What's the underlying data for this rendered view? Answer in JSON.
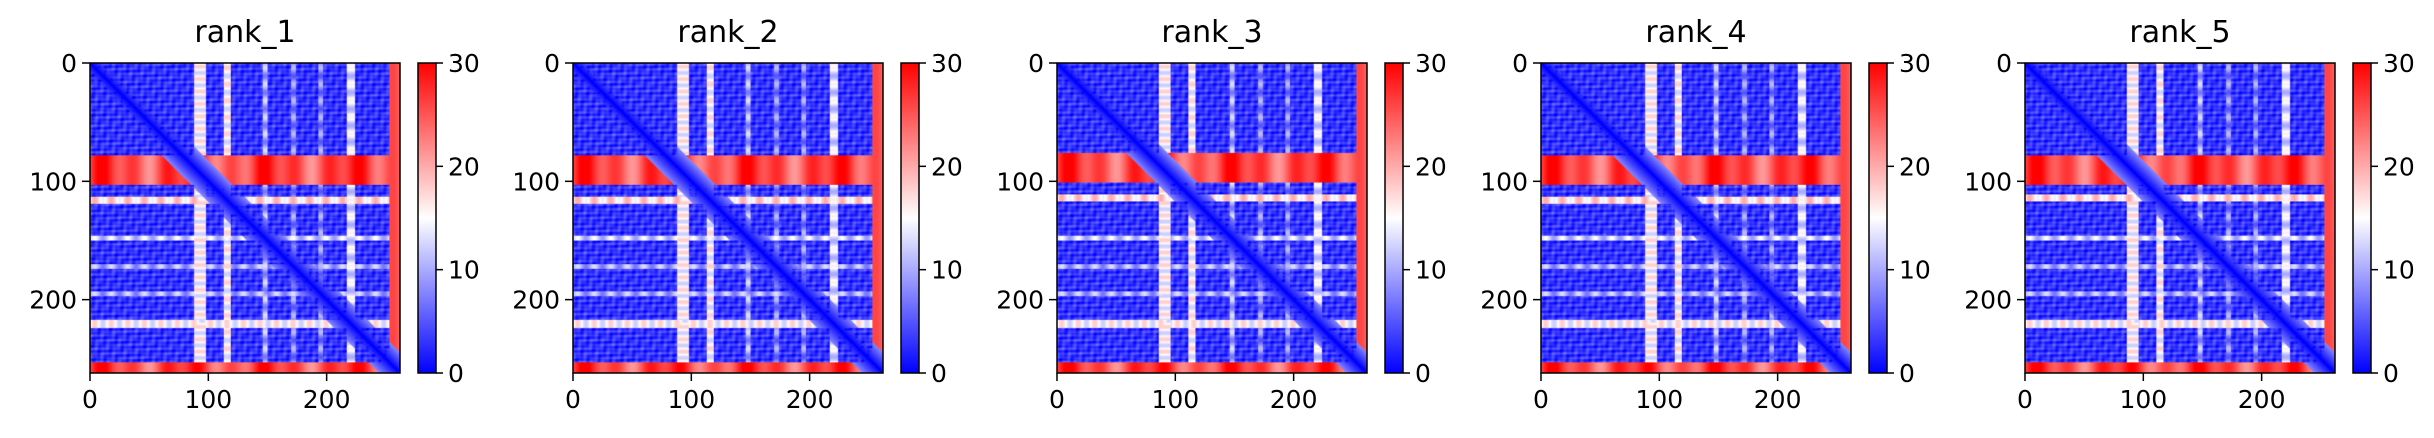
{
  "figure": {
    "colormap": "bwr",
    "colors": {
      "low": "#0000ff",
      "mid": "#ffffff",
      "high": "#ff0000"
    }
  },
  "chart_data": [
    {
      "type": "heatmap",
      "title": "rank_1",
      "n": 262,
      "x_ticks": [
        0,
        100,
        200
      ],
      "y_ticks": [
        0,
        100,
        200
      ],
      "colorbar": {
        "range": [
          0,
          30
        ],
        "ticks": [
          0,
          10,
          20,
          30
        ]
      },
      "hot_rows": [
        [
          78,
          103
        ],
        [
          253,
          262
        ]
      ],
      "hot_cols": [
        [
          88,
          98
        ]
      ],
      "bands": [
        [
          113,
          119,
          19
        ],
        [
          146,
          150,
          14
        ],
        [
          170,
          174,
          12
        ],
        [
          193,
          197,
          12
        ],
        [
          217,
          224,
          17
        ]
      ]
    },
    {
      "type": "heatmap",
      "title": "rank_2",
      "n": 262,
      "x_ticks": [
        0,
        100,
        200
      ],
      "y_ticks": [
        0,
        100,
        200
      ],
      "colorbar": {
        "range": [
          0,
          30
        ],
        "ticks": [
          0,
          10,
          20,
          30
        ]
      },
      "hot_rows": [
        [
          78,
          103
        ],
        [
          253,
          262
        ]
      ],
      "hot_cols": [
        [
          88,
          98
        ]
      ],
      "bands": [
        [
          113,
          119,
          19
        ],
        [
          146,
          150,
          14
        ],
        [
          170,
          174,
          12
        ],
        [
          193,
          197,
          12
        ],
        [
          217,
          224,
          17
        ]
      ]
    },
    {
      "type": "heatmap",
      "title": "rank_3",
      "n": 262,
      "x_ticks": [
        0,
        100,
        200
      ],
      "y_ticks": [
        0,
        100,
        200
      ],
      "colorbar": {
        "range": [
          0,
          30
        ],
        "ticks": [
          0,
          10,
          20,
          30
        ]
      },
      "hot_rows": [
        [
          76,
          101
        ],
        [
          253,
          262
        ]
      ],
      "hot_cols": [
        [
          86,
          96
        ]
      ],
      "bands": [
        [
          111,
          117,
          19
        ],
        [
          146,
          150,
          14
        ],
        [
          170,
          174,
          12
        ],
        [
          193,
          197,
          12
        ],
        [
          217,
          224,
          17
        ]
      ]
    },
    {
      "type": "heatmap",
      "title": "rank_4",
      "n": 262,
      "x_ticks": [
        0,
        100,
        200
      ],
      "y_ticks": [
        0,
        100,
        200
      ],
      "colorbar": {
        "range": [
          0,
          30
        ],
        "ticks": [
          0,
          10,
          20,
          30
        ]
      },
      "hot_rows": [
        [
          78,
          103
        ],
        [
          253,
          262
        ]
      ],
      "hot_cols": [
        [
          88,
          98
        ]
      ],
      "bands": [
        [
          113,
          119,
          19
        ],
        [
          146,
          150,
          14
        ],
        [
          170,
          174,
          12
        ],
        [
          193,
          197,
          12
        ],
        [
          217,
          224,
          17
        ]
      ]
    },
    {
      "type": "heatmap",
      "title": "rank_5",
      "n": 262,
      "x_ticks": [
        0,
        100,
        200
      ],
      "y_ticks": [
        0,
        100,
        200
      ],
      "colorbar": {
        "range": [
          0,
          30
        ],
        "ticks": [
          0,
          10,
          20,
          30
        ]
      },
      "hot_rows": [
        [
          78,
          103
        ],
        [
          253,
          262
        ]
      ],
      "hot_cols": [
        [
          86,
          96
        ]
      ],
      "bands": [
        [
          111,
          117,
          19
        ],
        [
          146,
          150,
          14
        ],
        [
          170,
          174,
          12
        ],
        [
          193,
          197,
          12
        ],
        [
          217,
          224,
          17
        ]
      ]
    }
  ]
}
